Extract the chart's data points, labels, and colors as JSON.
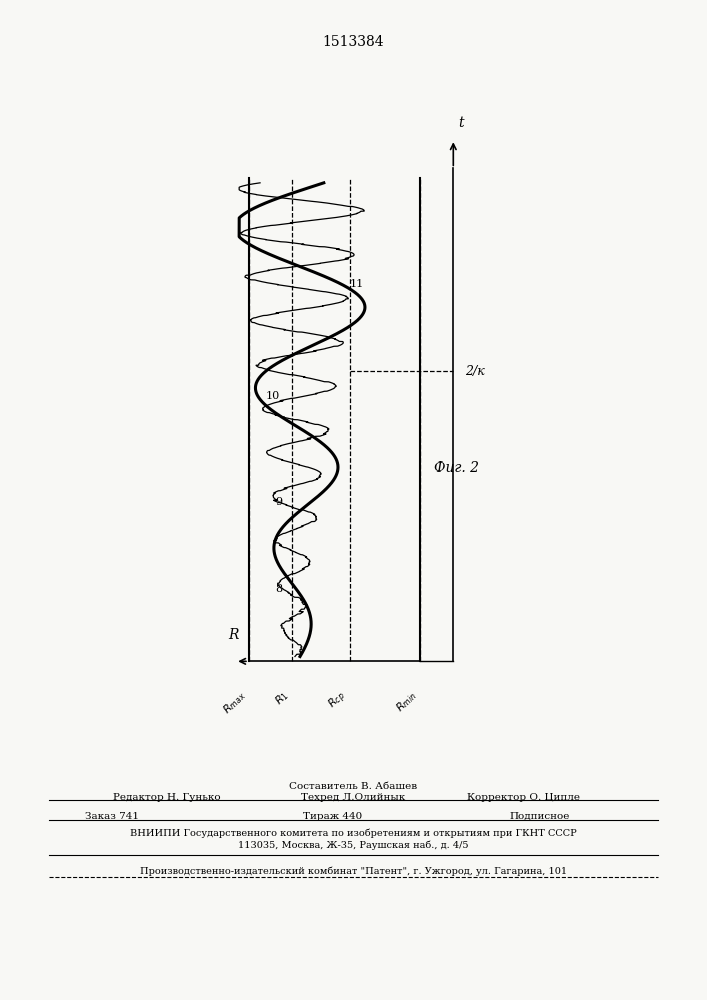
{
  "title": "1513384",
  "fig_label": "Фиг. 2",
  "x_axis_label": "R",
  "t_label": "t",
  "r_max": 0.0,
  "r_1": 0.22,
  "r_cp": 0.52,
  "r_min": 0.88,
  "two_k_label": "2/к",
  "two_k_t": 0.6,
  "label_8": "8",
  "label_9": "9",
  "label_10": "10",
  "label_11": "11",
  "paper_color": "#f8f8f5"
}
